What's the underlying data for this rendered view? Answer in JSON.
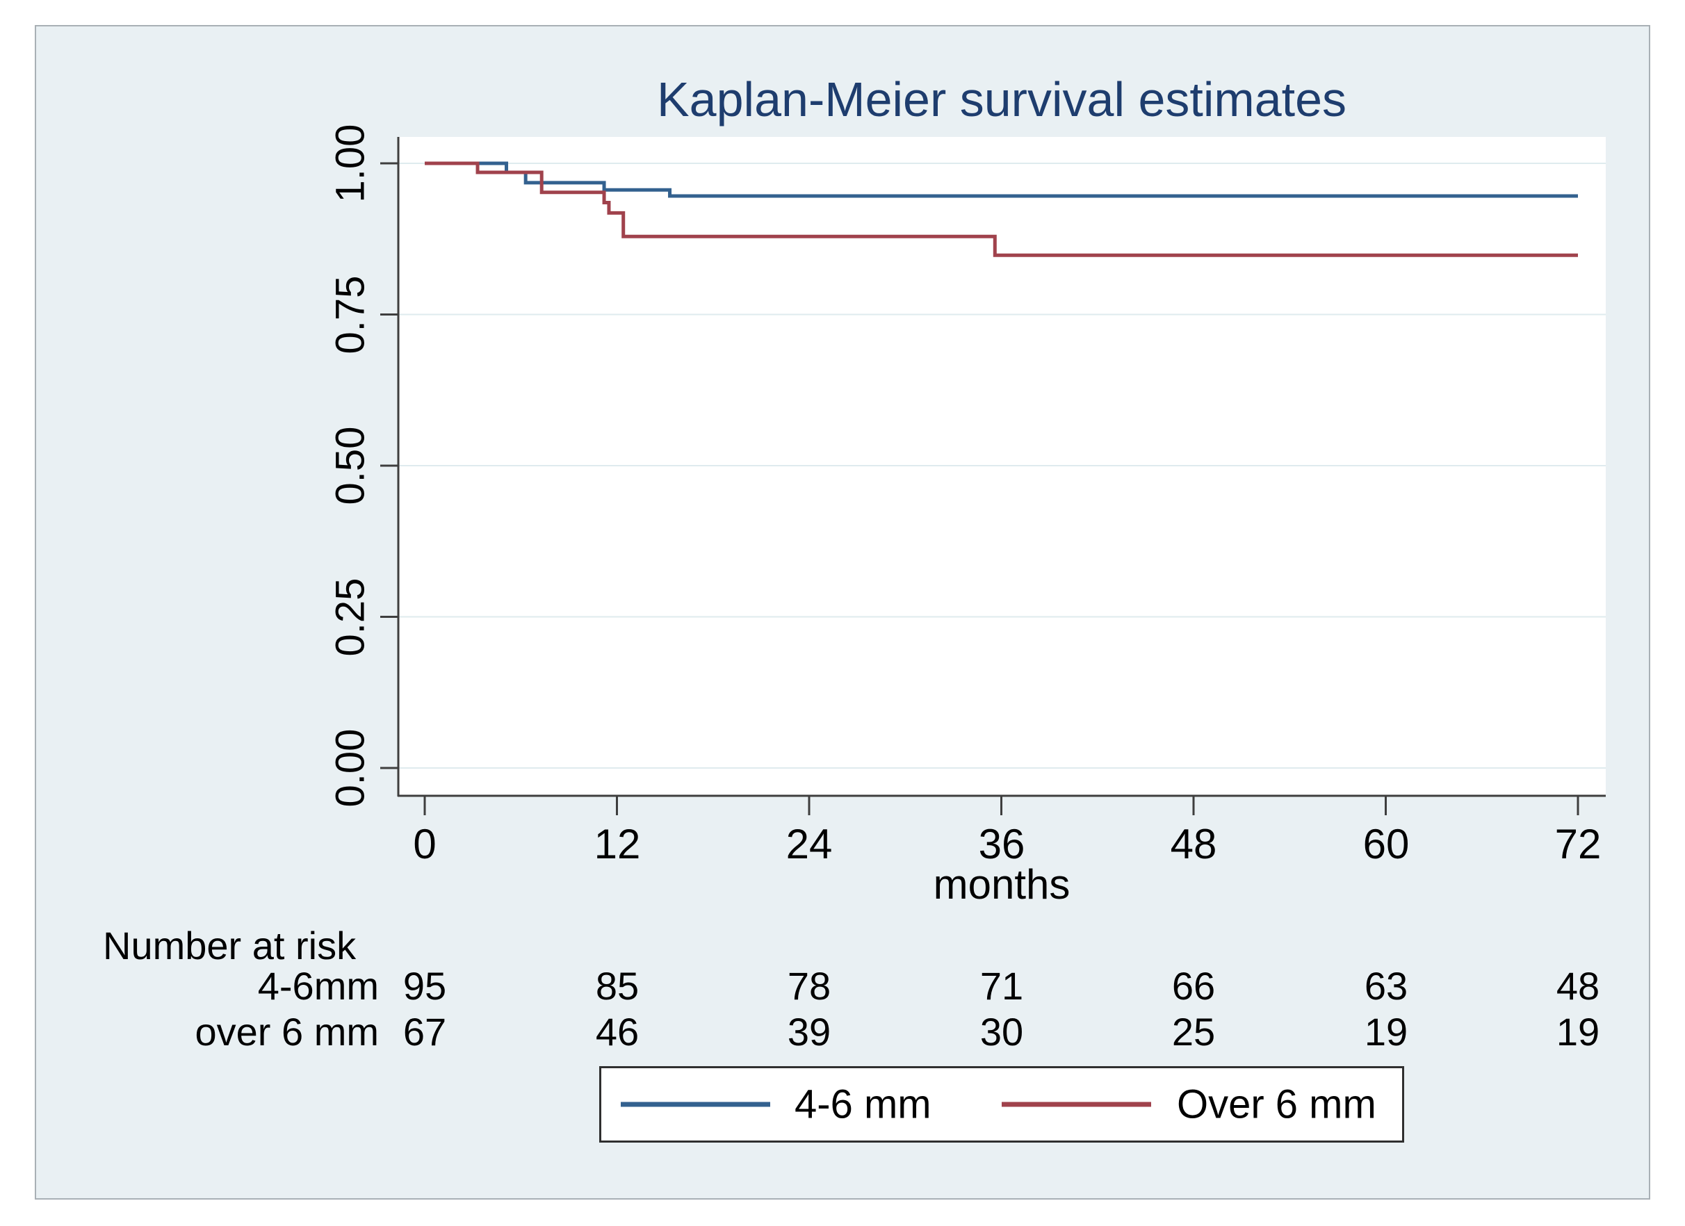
{
  "figure_background": "#e9f0f3",
  "plot_background": "#ffffff",
  "gridline_color": "#dfebee",
  "axis_color": "#3e3e3e",
  "title_color": "#1e3d6e",
  "chart_data": {
    "type": "line",
    "subtype": "kaplan-meier-step",
    "title": "Kaplan-Meier survival estimates",
    "xlabel": "months",
    "ylabel": "",
    "xlim": [
      0,
      72
    ],
    "ylim": [
      0.0,
      1.0
    ],
    "grid": "horizontal",
    "x_ticks": [
      0,
      12,
      24,
      36,
      48,
      60,
      72
    ],
    "x_tick_labels": [
      "0",
      "12",
      "24",
      "36",
      "48",
      "60",
      "72"
    ],
    "y_ticks": [
      0.0,
      0.25,
      0.5,
      0.75,
      1.0
    ],
    "y_tick_labels": [
      "0.00",
      "0.25",
      "0.50",
      "0.75",
      "1.00"
    ],
    "legend_position": "bottom-center",
    "series": [
      {
        "name": "4-6 mm",
        "color": "#33618f",
        "steps": [
          [
            0,
            1.0
          ],
          [
            5.1,
            0.985
          ],
          [
            6.3,
            0.968
          ],
          [
            11.2,
            0.956
          ],
          [
            15.3,
            0.946
          ],
          [
            72,
            0.946
          ]
        ]
      },
      {
        "name": "Over 6 mm",
        "color": "#a0424c",
        "steps": [
          [
            0,
            1.0
          ],
          [
            3.3,
            0.985
          ],
          [
            7.3,
            0.952
          ],
          [
            11.2,
            0.935
          ],
          [
            11.5,
            0.918
          ],
          [
            12.4,
            0.879
          ],
          [
            35.6,
            0.848
          ],
          [
            72,
            0.848
          ]
        ]
      }
    ]
  },
  "risk_table": {
    "heading": "Number at risk",
    "rows": [
      {
        "label": "4-6mm",
        "values": [
          "95",
          "85",
          "78",
          "71",
          "66",
          "63",
          "48"
        ]
      },
      {
        "label": "over 6 mm",
        "values": [
          "67",
          "46",
          "39",
          "30",
          "25",
          "19",
          "19"
        ]
      }
    ]
  }
}
